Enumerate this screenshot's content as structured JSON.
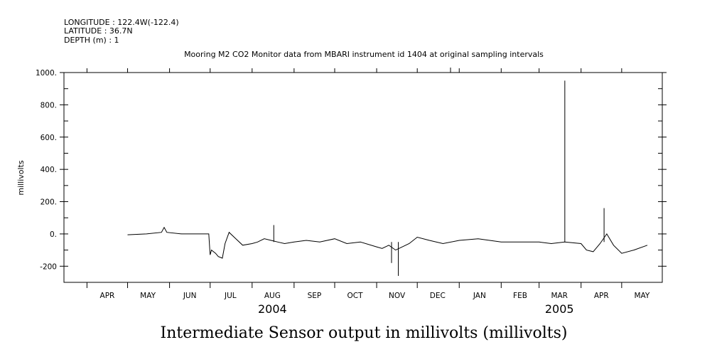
{
  "header": {
    "longitude": "LONGITUDE : 122.4W(-122.4)",
    "latitude": "LATITUDE : 36.7N",
    "depth": "DEPTH (m) : 1"
  },
  "chart_data": {
    "type": "line",
    "title": "Mooring M2 CO2 Monitor data from MBARI instrument id 1404 at original sampling intervals",
    "ylabel": "millivolts",
    "xlabel": "Intermediate Sensor output in millivolts (millivolts)",
    "ylim": [
      -300,
      1000
    ],
    "yticks": [
      {
        "value": 1000,
        "label": "1000."
      },
      {
        "value": 800,
        "label": "800."
      },
      {
        "value": 600,
        "label": "600."
      },
      {
        "value": 400,
        "label": "400."
      },
      {
        "value": 200,
        "label": "200."
      },
      {
        "value": 0,
        "label": "0."
      },
      {
        "value": -200,
        "label": "-200"
      }
    ],
    "xlim": [
      "2004-03-15",
      "2005-05-31"
    ],
    "month_labels": [
      {
        "date": "2004-04-16",
        "label": "APR"
      },
      {
        "date": "2004-05-16",
        "label": "MAY"
      },
      {
        "date": "2004-06-16",
        "label": "JUN"
      },
      {
        "date": "2004-07-16",
        "label": "JUL"
      },
      {
        "date": "2004-08-16",
        "label": "AUG"
      },
      {
        "date": "2004-09-16",
        "label": "SEP"
      },
      {
        "date": "2004-10-16",
        "label": "OCT"
      },
      {
        "date": "2004-11-16",
        "label": "NOV"
      },
      {
        "date": "2004-12-16",
        "label": "DEC"
      },
      {
        "date": "2005-01-16",
        "label": "JAN"
      },
      {
        "date": "2005-02-15",
        "label": "FEB"
      },
      {
        "date": "2005-03-16",
        "label": "MAR"
      },
      {
        "date": "2005-04-16",
        "label": "APR"
      },
      {
        "date": "2005-05-16",
        "label": "MAY"
      }
    ],
    "year_labels": [
      {
        "date": "2004-08-16",
        "label": "2004"
      },
      {
        "date": "2005-03-16",
        "label": "2005"
      }
    ],
    "grid": false,
    "series": [
      {
        "color": "#000000",
        "x": [
          "2004-05-01",
          "2004-05-15",
          "2004-05-26",
          "2004-05-28",
          "2004-05-30",
          "2004-06-10",
          "2004-06-30",
          "2004-07-01",
          "2004-07-02",
          "2004-07-05",
          "2004-07-07",
          "2004-07-10",
          "2004-07-12",
          "2004-07-15",
          "2004-07-20",
          "2004-07-25",
          "2004-08-01",
          "2004-08-05",
          "2004-08-10",
          "2004-08-15",
          "2004-08-20",
          "2004-08-25",
          "2004-09-01",
          "2004-09-10",
          "2004-09-20",
          "2004-10-01",
          "2004-10-10",
          "2004-10-20",
          "2004-11-01",
          "2004-11-05",
          "2004-11-10",
          "2004-11-15",
          "2004-11-20",
          "2004-11-25",
          "2004-12-01",
          "2004-12-10",
          "2004-12-20",
          "2005-01-01",
          "2005-01-15",
          "2005-02-01",
          "2005-02-15",
          "2005-03-01",
          "2005-03-10",
          "2005-03-20",
          "2005-04-01",
          "2005-04-05",
          "2005-04-10",
          "2005-04-15",
          "2005-04-20",
          "2005-04-25",
          "2005-05-01",
          "2005-05-10",
          "2005-05-20"
        ],
        "y": [
          -5,
          0,
          10,
          40,
          10,
          0,
          0,
          -130,
          -100,
          -120,
          -140,
          -150,
          -60,
          10,
          -30,
          -70,
          -60,
          -50,
          -30,
          -40,
          -50,
          -60,
          -50,
          -40,
          -50,
          -30,
          -60,
          -50,
          -80,
          -90,
          -70,
          -100,
          -80,
          -60,
          -20,
          -40,
          -60,
          -40,
          -30,
          -50,
          -50,
          -50,
          -60,
          -50,
          -60,
          -100,
          -110,
          -60,
          0,
          -70,
          -120,
          -100,
          -70
        ]
      }
    ],
    "spikes": [
      {
        "x": "2005-03-20",
        "y": 950
      },
      {
        "x": "2005-04-18",
        "y": 160
      },
      {
        "x": "2004-11-17",
        "y": -260
      },
      {
        "x": "2004-11-12",
        "y": -180
      },
      {
        "x": "2004-08-17",
        "y": 55
      }
    ]
  }
}
